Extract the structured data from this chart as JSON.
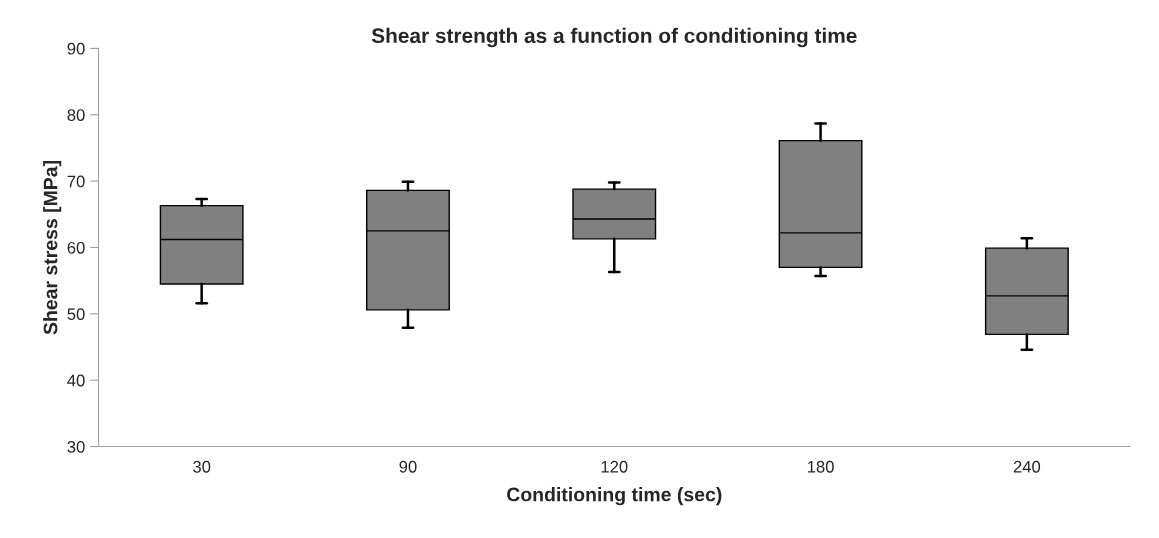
{
  "chart_data": {
    "type": "box",
    "title": "Shear strength as a function of conditioning time",
    "xlabel": "Conditioning time (sec)",
    "ylabel": "Shear stress [MPa]",
    "categories": [
      "30",
      "90",
      "120",
      "180",
      "240"
    ],
    "boxes": [
      {
        "low": 51.6,
        "q1": 54.5,
        "median": 61.2,
        "q3": 66.3,
        "high": 67.3
      },
      {
        "low": 47.9,
        "q1": 50.6,
        "median": 62.5,
        "q3": 68.6,
        "high": 69.9
      },
      {
        "low": 56.3,
        "q1": 61.3,
        "median": 64.3,
        "q3": 68.8,
        "high": 69.8
      },
      {
        "low": 55.7,
        "q1": 57.0,
        "median": 62.2,
        "q3": 76.1,
        "high": 78.7
      },
      {
        "low": 44.6,
        "q1": 46.9,
        "median": 52.7,
        "q3": 59.9,
        "high": 61.4
      }
    ],
    "color": "#808080",
    "ylim": [
      30,
      90
    ],
    "yticks": [
      30,
      40,
      50,
      60,
      70,
      80,
      90
    ],
    "grid": false,
    "legend": false
  }
}
